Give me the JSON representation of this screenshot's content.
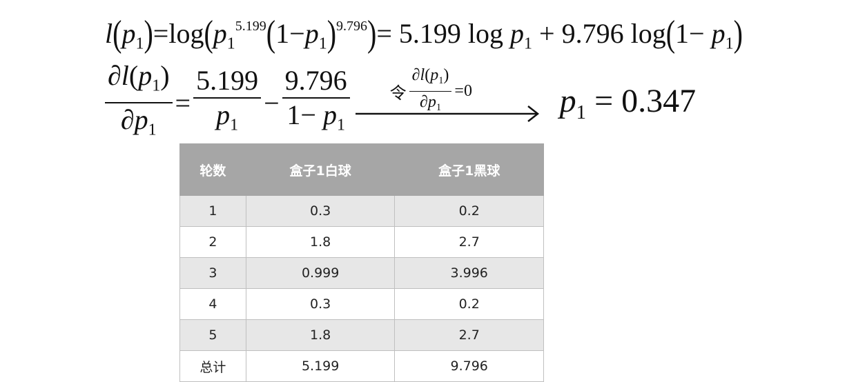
{
  "formula1": [
    "l",
    "(",
    "p",
    "1",
    ")",
    "=",
    "log",
    "(",
    "p",
    "1",
    "5.199",
    "(",
    "1−",
    "p",
    "1",
    ")",
    "9.796",
    ")",
    "= 5.199 log ",
    "p",
    "1",
    " + 9.796 log",
    "(",
    "1− ",
    "p",
    "1",
    ")"
  ],
  "formula2": {
    "lhs_num": [
      "∂",
      "l",
      "(",
      "p",
      "1",
      ")"
    ],
    "lhs_den": [
      "∂",
      "p",
      "1"
    ],
    "eq": "=",
    "frac1_num": "5.199",
    "frac1_den": [
      "p",
      "1"
    ],
    "minus": "−",
    "frac2_num": "9.796",
    "frac2_den": [
      "1− ",
      "p",
      "1"
    ],
    "arrow_label": {
      "prefix": "令",
      "num": [
        "∂",
        "l",
        "(",
        "p",
        "1",
        ")"
      ],
      "den": [
        "∂",
        "p",
        "1"
      ],
      "suffix": "=0"
    },
    "result": [
      "p",
      "1",
      " = 0.347"
    ]
  },
  "table": {
    "header": [
      "轮数",
      "盒子1白球",
      "盒子1黑球"
    ],
    "rows": [
      [
        "1",
        "0.3",
        "0.2"
      ],
      [
        "2",
        "1.8",
        "2.7"
      ],
      [
        "3",
        "0.999",
        "3.996"
      ],
      [
        "4",
        "0.3",
        "0.2"
      ],
      [
        "5",
        "1.8",
        "2.7"
      ],
      [
        "总计",
        "5.199",
        "9.796"
      ]
    ]
  }
}
